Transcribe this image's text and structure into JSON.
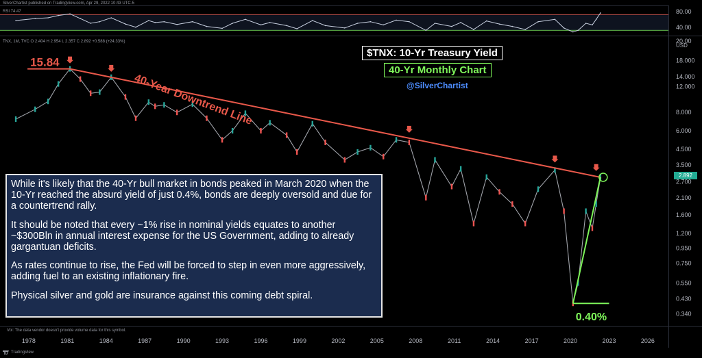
{
  "header": {
    "publisher": "SilverChartist published on TradingView.com, Apr 29, 2022 10:43 UTC-5",
    "rsi_label": "RSI 74.47",
    "tnx_label": "TNX, 1M, TVC  O 2.404  H 2.954  L 2.357  C 2.892  +0.588 (+24.33%)"
  },
  "titles": {
    "main": "$TNX: 10-Yr Treasury Yield",
    "sub": "40-Yr Monthly Chart",
    "handle": "@SilverChartist"
  },
  "annotations": {
    "peak_label": "15.84",
    "trendline_label": "40-Year Downtrend Line",
    "low_label": "0.40%"
  },
  "note": {
    "p1": "While it's likely that the 40-Yr bull market in bonds peaked in March 2020 when the 10-Yr reached the absurd yield of just 0.4%, bonds are deeply oversold and due for a countertrend rally.",
    "p2": "It should be noted that every ~1% rise in nominal yields equates to another ~$300Bln in annual interest expense for the US Government, adding to already gargantuan deficits.",
    "p3": "As rates continue to rise, the Fed will be forced to step in even more aggressively, adding fuel to an existing inflationary fire.",
    "p4": "Physical silver and gold are insurance against this coming debt spiral."
  },
  "footer": {
    "volume_note": "Vol: The data vendor doesn't provide volume data for this symbol.",
    "brand": "TradingView"
  },
  "colors": {
    "trendline": "#e8584a",
    "support": "#7ef55a",
    "candle_up": "#26a69a",
    "candle_down": "#ef5350",
    "rsi_line": "#c8d0e0",
    "rsi_upper": "#e8584a",
    "rsi_lower": "#7ef55a",
    "note_bg": "#1b2c4e"
  },
  "chart_data": {
    "type": "line",
    "symbol": "TNX",
    "timeframe": "1M",
    "y_scale": "log",
    "currency": "USD",
    "price_axis_ticks": [
      "80.00",
      "40.00",
      "20.00",
      "18.000",
      "14.000",
      "12.000",
      "8.000",
      "6.000",
      "4.500",
      "3.500",
      "2.700",
      "2.100",
      "1.600",
      "1.200",
      "0.950",
      "0.750",
      "0.550",
      "0.430",
      "0.340"
    ],
    "x_axis_ticks": [
      "1978",
      "1981",
      "1984",
      "1987",
      "1990",
      "1993",
      "1996",
      "1999",
      "2002",
      "2005",
      "2008",
      "2011",
      "2014",
      "2017",
      "2020",
      "2023",
      "2026"
    ],
    "last_price": "2.892",
    "series": [
      {
        "name": "TNX",
        "x": [
          1977.0,
          1978.5,
          1979.5,
          1980.3,
          1981.2,
          1982.0,
          1982.8,
          1983.5,
          1984.4,
          1985.5,
          1986.3,
          1987.3,
          1987.8,
          1988.5,
          1989.5,
          1990.7,
          1991.8,
          1993.0,
          1993.8,
          1994.8,
          1996.0,
          1996.7,
          1998.0,
          1998.8,
          2000.0,
          2001.0,
          2002.5,
          2003.5,
          2004.5,
          2005.5,
          2006.5,
          2007.5,
          2008.8,
          2009.5,
          2010.8,
          2011.5,
          2012.5,
          2013.5,
          2014.5,
          2015.5,
          2016.5,
          2017.5,
          2018.8,
          2019.5,
          2020.2,
          2020.6,
          2021.2,
          2021.7,
          2022.0,
          2022.33
        ],
        "y": [
          7.2,
          8.4,
          9.5,
          12.5,
          15.84,
          13.5,
          10.8,
          11.0,
          13.9,
          10.2,
          7.3,
          9.4,
          8.8,
          9.0,
          8.0,
          9.1,
          7.3,
          5.2,
          6.0,
          7.9,
          6.0,
          6.8,
          5.6,
          4.3,
          6.7,
          5.0,
          3.8,
          4.3,
          4.6,
          4.0,
          5.2,
          5.0,
          2.1,
          3.8,
          2.5,
          3.3,
          1.4,
          2.9,
          2.3,
          1.9,
          1.4,
          2.4,
          3.24,
          1.7,
          0.4,
          0.55,
          1.7,
          1.3,
          1.9,
          2.892
        ]
      },
      {
        "name": "RSI",
        "y": [
          55,
          60,
          62,
          68,
          72,
          60,
          48,
          52,
          62,
          46,
          38,
          55,
          50,
          52,
          45,
          52,
          40,
          35,
          48,
          58,
          44,
          50,
          42,
          34,
          55,
          42,
          36,
          48,
          52,
          44,
          56,
          52,
          30,
          48,
          40,
          50,
          32,
          54,
          46,
          40,
          32,
          52,
          58,
          36,
          26,
          30,
          48,
          44,
          58,
          74.47
        ]
      }
    ],
    "rsi_levels": [
      70,
      30
    ],
    "trendline": {
      "x": [
        1981.2,
        2022.33
      ],
      "y": [
        15.84,
        2.892
      ]
    },
    "support_line": {
      "x": [
        2020.2,
        2022.33
      ],
      "y": [
        0.4,
        2.892
      ]
    },
    "low_baseline": {
      "x": [
        2020.2,
        2023.0
      ],
      "y": [
        0.4,
        0.4
      ]
    },
    "top_markers_x": [
      1981.2,
      1984.4,
      2007.5,
      2018.8,
      2022.0
    ],
    "xlim": [
      1976.2,
      2027.6
    ],
    "ylim": [
      0.3,
      22
    ]
  }
}
